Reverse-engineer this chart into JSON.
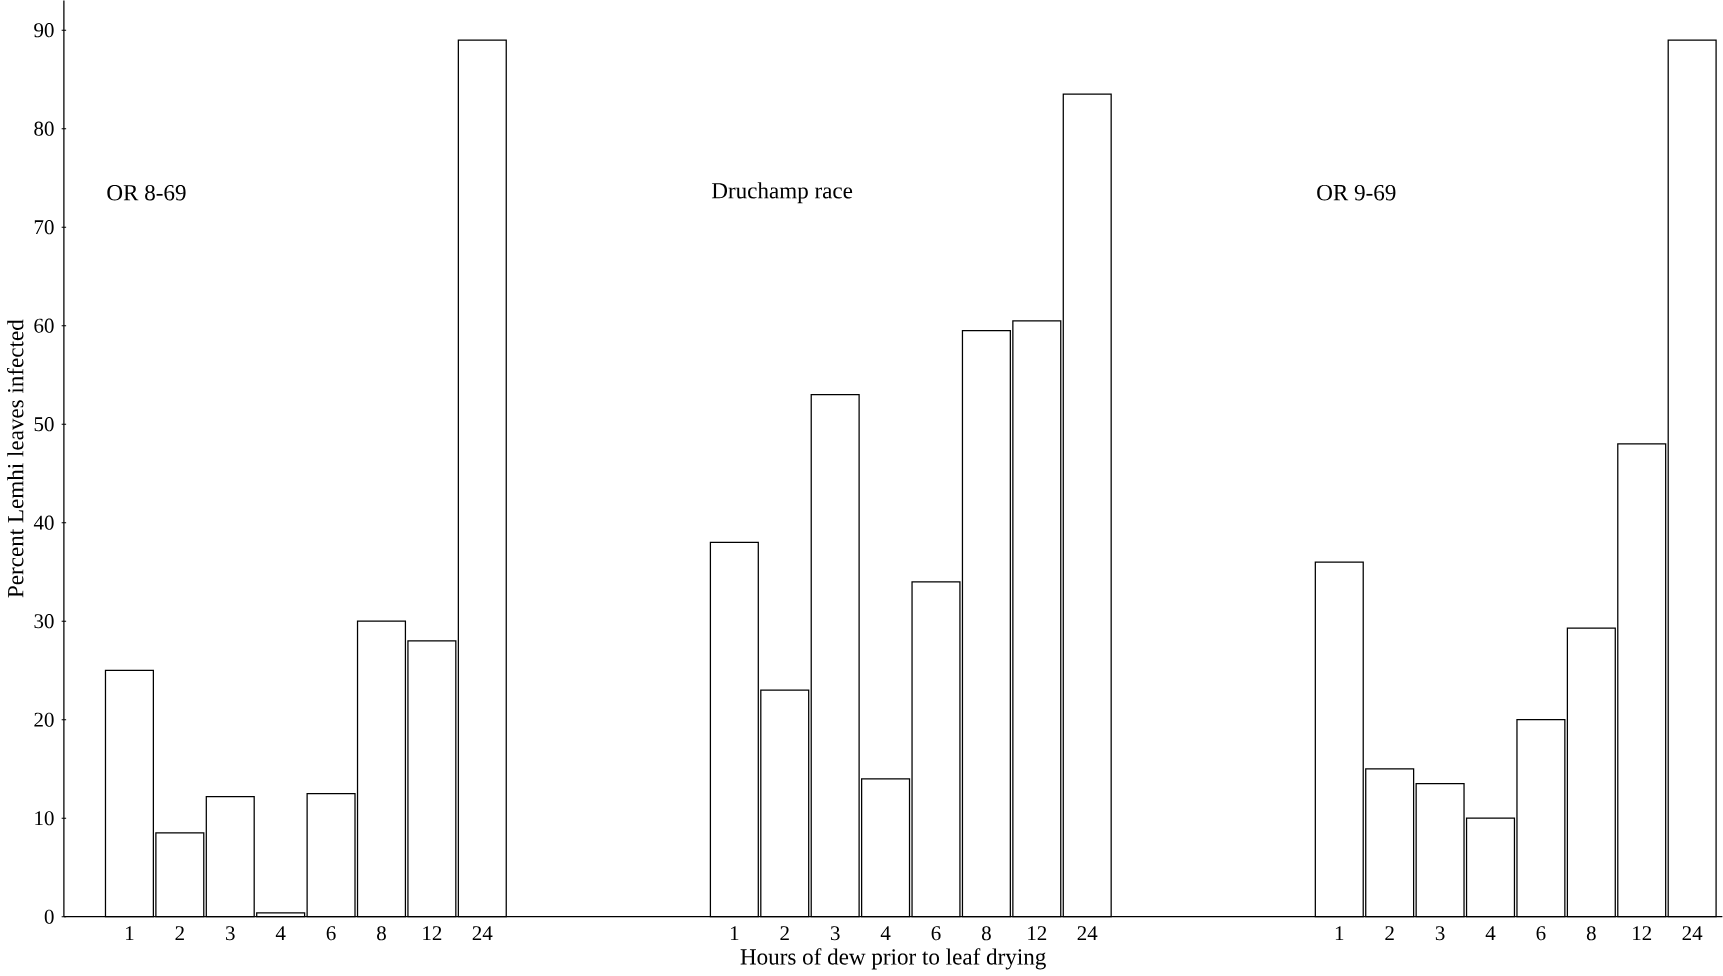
{
  "chart_data": {
    "type": "bar",
    "xlabel": "Hours of dew prior to leaf drying",
    "ylabel": "Percent Lemhi leaves infected",
    "categories": [
      "1",
      "2",
      "3",
      "4",
      "6",
      "8",
      "12",
      "24",
      null,
      null,
      null,
      null,
      "1",
      "2",
      "3",
      "4",
      "6",
      "8",
      "12",
      "24",
      null,
      null,
      null,
      null,
      "1",
      "2",
      "3",
      "4",
      "6",
      "8",
      "12",
      "24"
    ],
    "values": [
      25,
      8.5,
      12.2,
      0.4,
      12.5,
      30,
      28,
      89,
      null,
      null,
      null,
      null,
      38,
      23,
      53,
      14,
      34,
      59.5,
      60.5,
      83.5,
      null,
      null,
      null,
      null,
      36,
      15,
      13.5,
      10,
      20,
      29.3,
      48,
      89
    ],
    "color": "#ffffff",
    "ylim": [
      0,
      93
    ],
    "yticks": [
      0,
      10,
      20,
      30,
      40,
      50,
      60,
      70,
      80,
      90
    ],
    "grid": false,
    "annotations": [
      "OR 8-69",
      "Druchamp race",
      "OR 9-69"
    ]
  }
}
